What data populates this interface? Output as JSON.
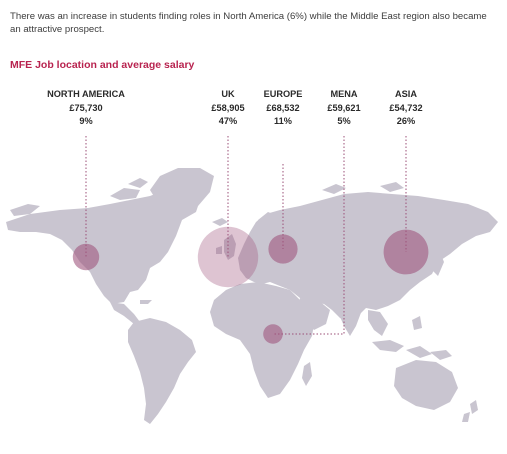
{
  "intro_text": "There was an increase in students finding roles in North America (6%) while the Middle East region also became an attractive prospect.",
  "section_title": "MFE Job location and average salary",
  "regions": [
    {
      "name": "NORTH AMERICA",
      "salary": "£75,730",
      "share": "9%",
      "share_value": 9
    },
    {
      "name": "UK",
      "salary": "£58,905",
      "share": "47%",
      "share_value": 47
    },
    {
      "name": "EUROPE",
      "salary": "£68,532",
      "share": "11%",
      "share_value": 11
    },
    {
      "name": "MENA",
      "salary": "£59,621",
      "share": "5%",
      "share_value": 5
    },
    {
      "name": "ASIA",
      "salary": "£54,732",
      "share": "26%",
      "share_value": 26
    }
  ],
  "colors": {
    "title": "#b8234f",
    "text": "#2a2a2a",
    "land": "#c9c5d0",
    "bubble": "#a0577f",
    "connector": "#9b4f77"
  }
}
